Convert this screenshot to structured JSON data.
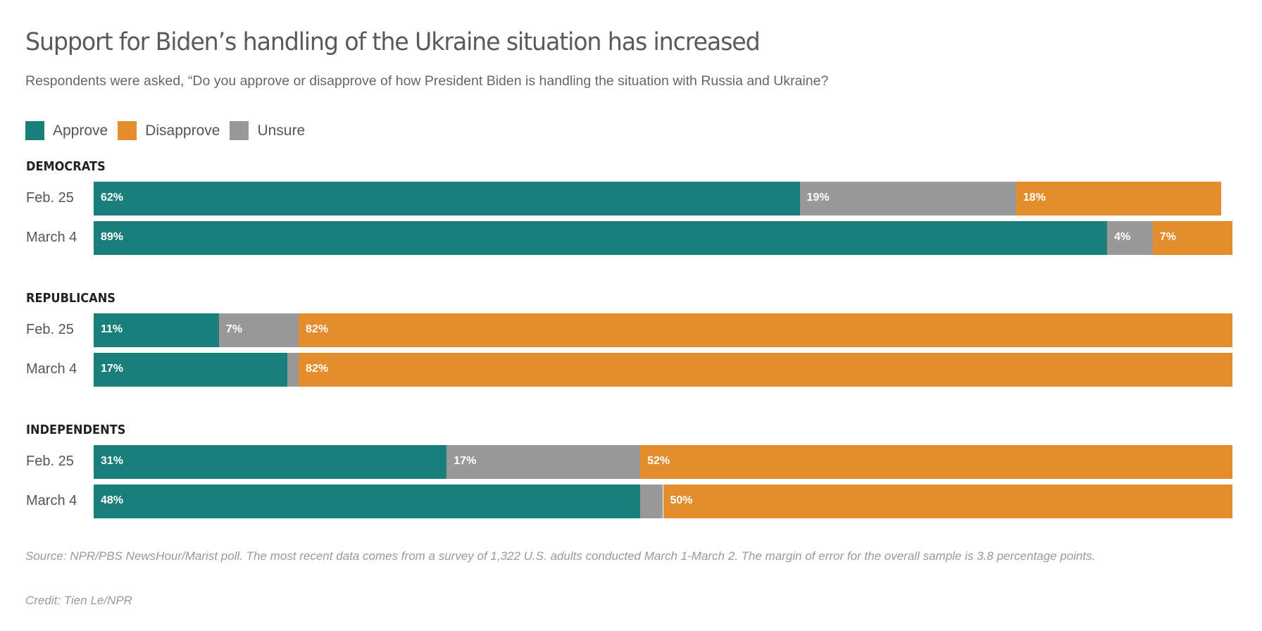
{
  "title": "Support for Biden’s handling of the Ukraine situation has increased",
  "subtitle": "Respondents were asked, “Do you approve or disapprove of how President Biden is handling the situation with Russia and Ukraine?",
  "source": "Source: NPR/PBS NewsHour/Marist poll. The most recent data comes from a survey of 1,322 U.S. adults conducted March 1-March 2. The margin of error for the overall sample is 3.8 percentage points.",
  "credit": "Credit: Tien Le/NPR",
  "chart_data": {
    "type": "bar",
    "orientation": "horizontal",
    "stacked": true,
    "unit": "%",
    "xlim": [
      0,
      100
    ],
    "legend": {
      "placement": "top-left",
      "entries": [
        {
          "name": "Approve",
          "color": "#1a7f7b"
        },
        {
          "name": "Disapprove",
          "color": "#e38d2d"
        },
        {
          "name": "Unsure",
          "color": "#999999"
        }
      ]
    },
    "stack_order": [
      "Approve",
      "Unsure",
      "Disapprove"
    ],
    "groups": [
      {
        "name": "DEMOCRATS",
        "rows": [
          {
            "label": "Feb. 25",
            "Approve": 62,
            "Unsure": 19,
            "Disapprove": 18,
            "labels": {
              "Approve": "62%",
              "Unsure": "19%",
              "Disapprove": "18%"
            }
          },
          {
            "label": "March 4",
            "Approve": 89,
            "Unsure": 4,
            "Disapprove": 7,
            "labels": {
              "Approve": "89%",
              "Unsure": "4%",
              "Disapprove": "7%"
            }
          }
        ]
      },
      {
        "name": "REPUBLICANS",
        "rows": [
          {
            "label": "Feb. 25",
            "Approve": 11,
            "Unsure": 7,
            "Disapprove": 82,
            "labels": {
              "Approve": "11%",
              "Unsure": "7%",
              "Disapprove": "82%"
            }
          },
          {
            "label": "March 4",
            "Approve": 17,
            "Unsure": 1,
            "Disapprove": 82,
            "labels": {
              "Approve": "17%",
              "Unsure": "",
              "Disapprove": "82%"
            }
          }
        ]
      },
      {
        "name": "INDEPENDENTS",
        "rows": [
          {
            "label": "Feb. 25",
            "Approve": 31,
            "Unsure": 17,
            "Disapprove": 52,
            "labels": {
              "Approve": "31%",
              "Unsure": "17%",
              "Disapprove": "52%"
            }
          },
          {
            "label": "March 4",
            "Approve": 48,
            "Unsure": 2,
            "Disapprove": 50,
            "labels": {
              "Approve": "48%",
              "Unsure": "",
              "Disapprove": "50%"
            }
          }
        ]
      }
    ]
  }
}
